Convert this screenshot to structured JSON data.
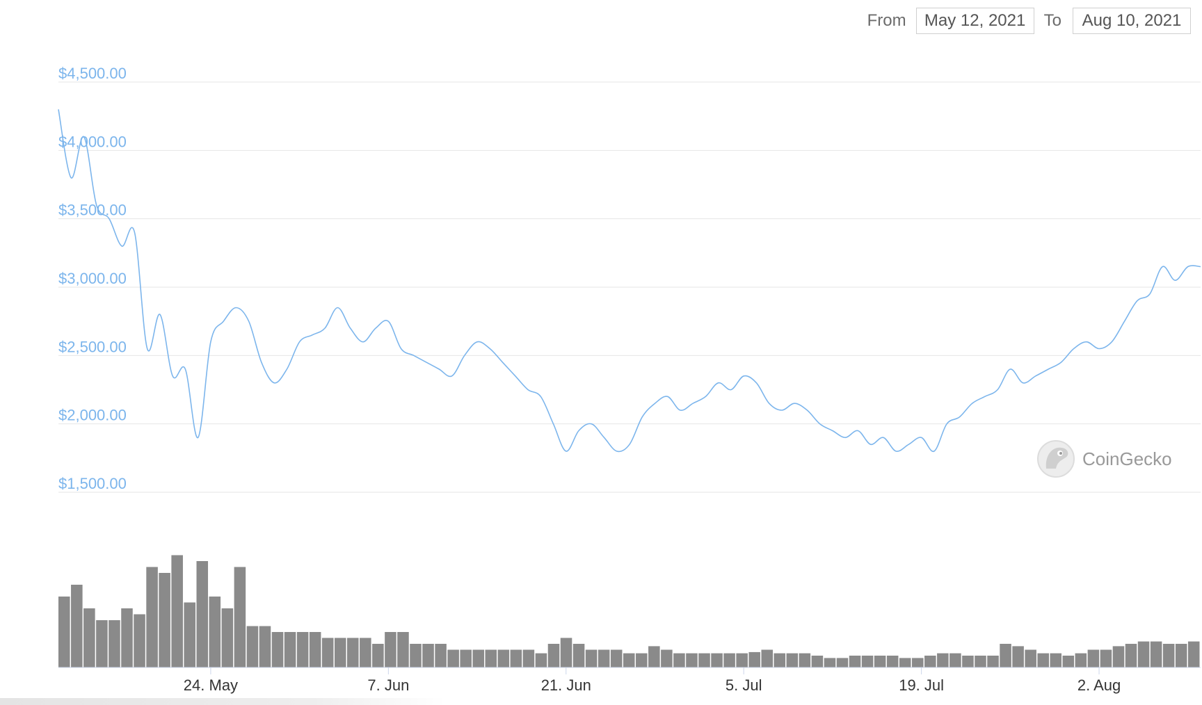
{
  "date_range": {
    "from_label": "From",
    "from_value": "May 12, 2021",
    "to_label": "To",
    "to_value": "Aug 10, 2021"
  },
  "watermark": {
    "text": "CoinGecko",
    "icon": "gecko-logo-icon"
  },
  "colors": {
    "price_line": "#7cb5ec",
    "volume_bars": "#8a8a8a",
    "gridline": "#e6e6e6"
  },
  "chart_data": {
    "type": "line",
    "x_axis": {
      "type": "date",
      "range": [
        "2021-05-12",
        "2021-08-10"
      ],
      "ticks": [
        {
          "label": "24. May",
          "date": "2021-05-24"
        },
        {
          "label": "7. Jun",
          "date": "2021-06-07"
        },
        {
          "label": "21. Jun",
          "date": "2021-06-21"
        },
        {
          "label": "5. Jul",
          "date": "2021-07-05"
        },
        {
          "label": "19. Jul",
          "date": "2021-07-19"
        },
        {
          "label": "2. Aug",
          "date": "2021-08-02"
        }
      ]
    },
    "y_axis": {
      "ylim": [
        1500,
        4500
      ],
      "ticks": [
        {
          "label": "$4,500.00",
          "value": 4500
        },
        {
          "label": "$4,000.00",
          "value": 4000
        },
        {
          "label": "$3,500.00",
          "value": 3500
        },
        {
          "label": "$3,000.00",
          "value": 3000
        },
        {
          "label": "$2,500.00",
          "value": 2500
        },
        {
          "label": "$2,000.00",
          "value": 2000
        },
        {
          "label": "$1,500.00",
          "value": 1500
        }
      ]
    },
    "grid": true,
    "legend": false,
    "series": [
      {
        "type": "line",
        "x": [
          "2021-05-12",
          "2021-05-13",
          "2021-05-14",
          "2021-05-15",
          "2021-05-16",
          "2021-05-17",
          "2021-05-18",
          "2021-05-19",
          "2021-05-20",
          "2021-05-21",
          "2021-05-22",
          "2021-05-23",
          "2021-05-24",
          "2021-05-25",
          "2021-05-26",
          "2021-05-27",
          "2021-05-28",
          "2021-05-29",
          "2021-05-30",
          "2021-05-31",
          "2021-06-01",
          "2021-06-02",
          "2021-06-03",
          "2021-06-04",
          "2021-06-05",
          "2021-06-06",
          "2021-06-07",
          "2021-06-08",
          "2021-06-09",
          "2021-06-10",
          "2021-06-11",
          "2021-06-12",
          "2021-06-13",
          "2021-06-14",
          "2021-06-15",
          "2021-06-16",
          "2021-06-17",
          "2021-06-18",
          "2021-06-19",
          "2021-06-20",
          "2021-06-21",
          "2021-06-22",
          "2021-06-23",
          "2021-06-24",
          "2021-06-25",
          "2021-06-26",
          "2021-06-27",
          "2021-06-28",
          "2021-06-29",
          "2021-06-30",
          "2021-07-01",
          "2021-07-02",
          "2021-07-03",
          "2021-07-04",
          "2021-07-05",
          "2021-07-06",
          "2021-07-07",
          "2021-07-08",
          "2021-07-09",
          "2021-07-10",
          "2021-07-11",
          "2021-07-12",
          "2021-07-13",
          "2021-07-14",
          "2021-07-15",
          "2021-07-16",
          "2021-07-17",
          "2021-07-18",
          "2021-07-19",
          "2021-07-20",
          "2021-07-21",
          "2021-07-22",
          "2021-07-23",
          "2021-07-24",
          "2021-07-25",
          "2021-07-26",
          "2021-07-27",
          "2021-07-28",
          "2021-07-29",
          "2021-07-30",
          "2021-07-31",
          "2021-08-01",
          "2021-08-02",
          "2021-08-03",
          "2021-08-04",
          "2021-08-05",
          "2021-08-06",
          "2021-08-07",
          "2021-08-08",
          "2021-08-09",
          "2021-08-10"
        ],
        "y": [
          4300,
          3800,
          4100,
          3600,
          3500,
          3300,
          3400,
          2550,
          2800,
          2350,
          2400,
          1900,
          2600,
          2750,
          2850,
          2750,
          2450,
          2300,
          2400,
          2600,
          2650,
          2700,
          2850,
          2700,
          2600,
          2700,
          2750,
          2550,
          2500,
          2450,
          2400,
          2350,
          2500,
          2600,
          2550,
          2450,
          2350,
          2250,
          2200,
          2000,
          1800,
          1950,
          2000,
          1900,
          1800,
          1850,
          2050,
          2150,
          2200,
          2100,
          2150,
          2200,
          2300,
          2250,
          2350,
          2300,
          2150,
          2100,
          2150,
          2100,
          2000,
          1950,
          1900,
          1950,
          1850,
          1900,
          1800,
          1850,
          1900,
          1800,
          2000,
          2050,
          2150,
          2200,
          2250,
          2400,
          2300,
          2350,
          2400,
          2450,
          2550,
          2600,
          2550,
          2600,
          2750,
          2900,
          2950,
          3150,
          3050,
          3150,
          3150
        ]
      },
      {
        "type": "column",
        "x": [
          "2021-05-12",
          "2021-05-13",
          "2021-05-14",
          "2021-05-15",
          "2021-05-16",
          "2021-05-17",
          "2021-05-18",
          "2021-05-19",
          "2021-05-20",
          "2021-05-21",
          "2021-05-22",
          "2021-05-23",
          "2021-05-24",
          "2021-05-25",
          "2021-05-26",
          "2021-05-27",
          "2021-05-28",
          "2021-05-29",
          "2021-05-30",
          "2021-05-31",
          "2021-06-01",
          "2021-06-02",
          "2021-06-03",
          "2021-06-04",
          "2021-06-05",
          "2021-06-06",
          "2021-06-07",
          "2021-06-08",
          "2021-06-09",
          "2021-06-10",
          "2021-06-11",
          "2021-06-12",
          "2021-06-13",
          "2021-06-14",
          "2021-06-15",
          "2021-06-16",
          "2021-06-17",
          "2021-06-18",
          "2021-06-19",
          "2021-06-20",
          "2021-06-21",
          "2021-06-22",
          "2021-06-23",
          "2021-06-24",
          "2021-06-25",
          "2021-06-26",
          "2021-06-27",
          "2021-06-28",
          "2021-06-29",
          "2021-06-30",
          "2021-07-01",
          "2021-07-02",
          "2021-07-03",
          "2021-07-04",
          "2021-07-05",
          "2021-07-06",
          "2021-07-07",
          "2021-07-08",
          "2021-07-09",
          "2021-07-10",
          "2021-07-11",
          "2021-07-12",
          "2021-07-13",
          "2021-07-14",
          "2021-07-15",
          "2021-07-16",
          "2021-07-17",
          "2021-07-18",
          "2021-07-19",
          "2021-07-20",
          "2021-07-21",
          "2021-07-22",
          "2021-07-23",
          "2021-07-24",
          "2021-07-25",
          "2021-07-26",
          "2021-07-27",
          "2021-07-28",
          "2021-07-29",
          "2021-07-30",
          "2021-07-31",
          "2021-08-01",
          "2021-08-02",
          "2021-08-03",
          "2021-08-04",
          "2021-08-05",
          "2021-08-06",
          "2021-08-07",
          "2021-08-08",
          "2021-08-09",
          "2021-08-10"
        ],
        "y": [
          0.6,
          0.7,
          0.5,
          0.4,
          0.4,
          0.5,
          0.45,
          0.85,
          0.8,
          0.95,
          0.55,
          0.9,
          0.6,
          0.5,
          0.85,
          0.35,
          0.35,
          0.3,
          0.3,
          0.3,
          0.3,
          0.25,
          0.25,
          0.25,
          0.25,
          0.2,
          0.3,
          0.3,
          0.2,
          0.2,
          0.2,
          0.15,
          0.15,
          0.15,
          0.15,
          0.15,
          0.15,
          0.15,
          0.12,
          0.2,
          0.25,
          0.2,
          0.15,
          0.15,
          0.15,
          0.12,
          0.12,
          0.18,
          0.15,
          0.12,
          0.12,
          0.12,
          0.12,
          0.12,
          0.12,
          0.13,
          0.15,
          0.12,
          0.12,
          0.12,
          0.1,
          0.08,
          0.08,
          0.1,
          0.1,
          0.1,
          0.1,
          0.08,
          0.08,
          0.1,
          0.12,
          0.12,
          0.1,
          0.1,
          0.1,
          0.2,
          0.18,
          0.15,
          0.12,
          0.12,
          0.1,
          0.12,
          0.15,
          0.15,
          0.18,
          0.2,
          0.22,
          0.22,
          0.2,
          0.2,
          0.22
        ]
      }
    ]
  }
}
